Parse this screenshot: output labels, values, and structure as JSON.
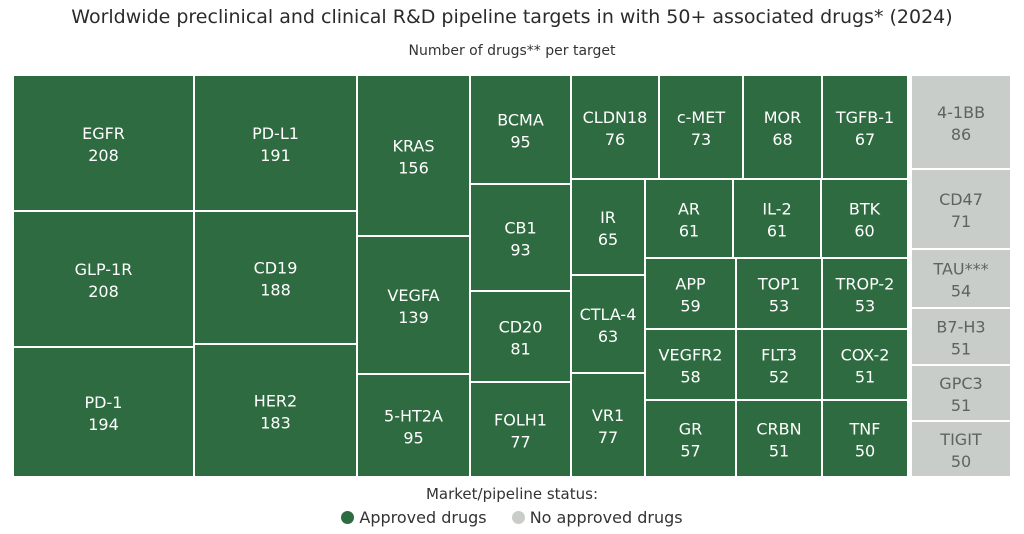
{
  "chart_data": {
    "type": "treemap",
    "title": "Worldwide preclinical and clinical R&D pipeline targets in with 50+ associated drugs* (2024)",
    "subtitle": "Number of drugs** per target",
    "legend_title": "Market/pipeline status:",
    "legend": [
      {
        "label": "Approved drugs",
        "color": "#2e6b40"
      },
      {
        "label": "No approved drugs",
        "color": "#c9cdca"
      }
    ],
    "groups": [
      {
        "status": "Approved drugs",
        "color": "#2e6b40",
        "text_color": "#ffffff",
        "items": [
          {
            "name": "EGFR",
            "value": 208
          },
          {
            "name": "GLP-1R",
            "value": 208
          },
          {
            "name": "PD-1",
            "value": 194
          },
          {
            "name": "PD-L1",
            "value": 191
          },
          {
            "name": "CD19",
            "value": 188
          },
          {
            "name": "HER2",
            "value": 183
          },
          {
            "name": "KRAS",
            "value": 156
          },
          {
            "name": "VEGFA",
            "value": 139
          },
          {
            "name": "5-HT2A",
            "value": 95
          },
          {
            "name": "BCMA",
            "value": 95
          },
          {
            "name": "CB1",
            "value": 93
          },
          {
            "name": "CD20",
            "value": 81
          },
          {
            "name": "FOLH1",
            "value": 77
          },
          {
            "name": "CLDN18",
            "value": 76
          },
          {
            "name": "c-MET",
            "value": 73
          },
          {
            "name": "MOR",
            "value": 68
          },
          {
            "name": "TGFB-1",
            "value": 67
          },
          {
            "name": "IR",
            "value": 65
          },
          {
            "name": "CTLA-4",
            "value": 63
          },
          {
            "name": "VR1",
            "value": 77
          },
          {
            "name": "AR",
            "value": 61
          },
          {
            "name": "IL-2",
            "value": 61
          },
          {
            "name": "BTK",
            "value": 60
          },
          {
            "name": "APP",
            "value": 59
          },
          {
            "name": "TOP1",
            "value": 53
          },
          {
            "name": "TROP-2",
            "value": 53
          },
          {
            "name": "VEGFR2",
            "value": 58
          },
          {
            "name": "FLT3",
            "value": 52
          },
          {
            "name": "COX-2",
            "value": 51
          },
          {
            "name": "GR",
            "value": 57
          },
          {
            "name": "CRBN",
            "value": 51
          },
          {
            "name": "TNF",
            "value": 50
          }
        ]
      },
      {
        "status": "No approved drugs",
        "color": "#c9cdca",
        "text_color": "#5e6360",
        "items": [
          {
            "name": "4-1BB",
            "value": 86
          },
          {
            "name": "CD47",
            "value": 71
          },
          {
            "name": "TAU***",
            "value": 54
          },
          {
            "name": "B7-H3",
            "value": 51
          },
          {
            "name": "GPC3",
            "value": 51
          },
          {
            "name": "TIGIT",
            "value": 50
          }
        ]
      }
    ]
  }
}
